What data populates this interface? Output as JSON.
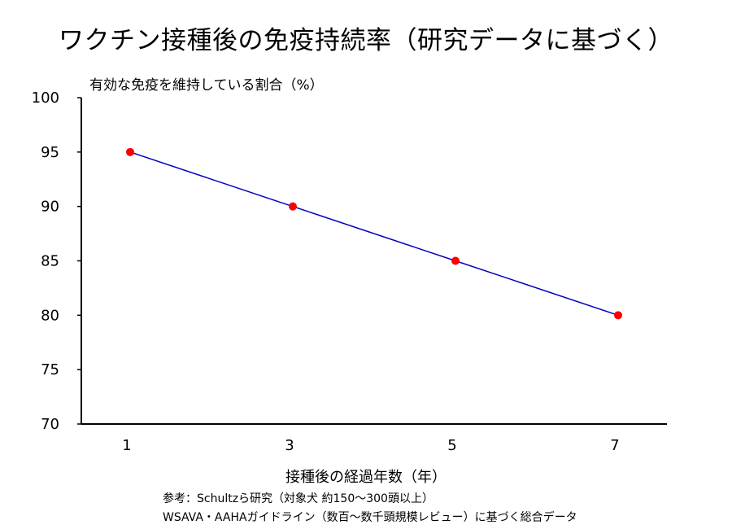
{
  "chart_data": {
    "type": "line",
    "title": "ワクチン接種後の免疫持続率（研究データに基づく）",
    "ylabel": "有効な免疫を維持している割合（%）",
    "xlabel": "接種後の経過年数（年）",
    "x": [
      1,
      3,
      5,
      7
    ],
    "xticks": [
      "1",
      "3",
      "5",
      "7"
    ],
    "yticks": [
      "70",
      "75",
      "80",
      "85",
      "90",
      "95",
      "100"
    ],
    "ylim": [
      70,
      100
    ],
    "series": [
      {
        "values": [
          95,
          90,
          85,
          80
        ],
        "line_color": "#0000cc",
        "marker_color": "#ff0000"
      }
    ],
    "grid": false,
    "notes": [
      "参考：Schultzら研究（対象犬 約150〜300頭以上）",
      "WSAVA・AAHAガイドライン（数百〜数千頭規模レビュー）に基づく総合データ"
    ]
  }
}
